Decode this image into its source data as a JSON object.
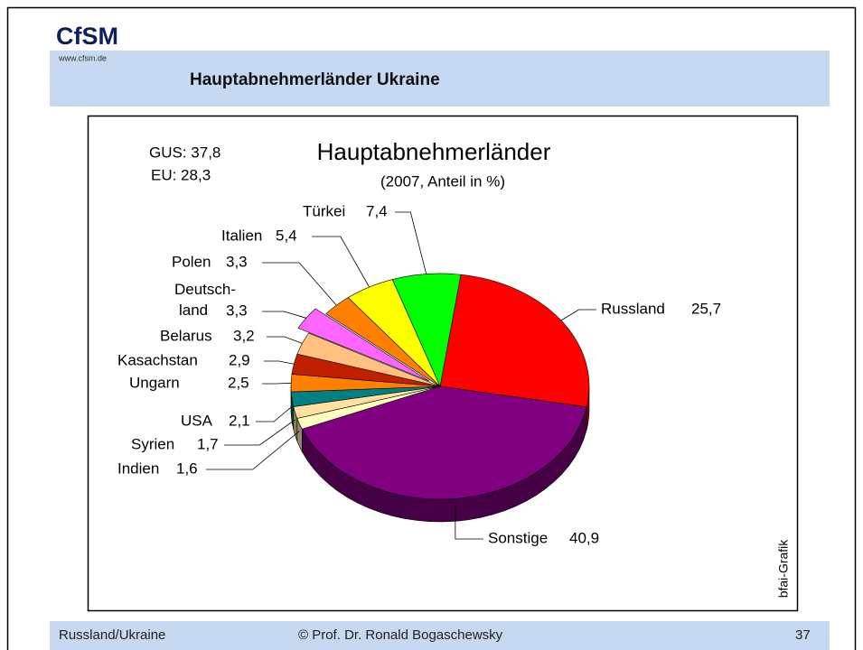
{
  "slide": {
    "logo": "CfSM",
    "website": "www.cfsm.de",
    "title": "Hauptabnehmerländer Ukraine",
    "footer_left": "Russland/Ukraine",
    "footer_center": "© Prof. Dr. Ronald Bogaschewsky",
    "page_number": "37"
  },
  "chart_data": {
    "type": "pie",
    "title": "Hauptabnehmerländer",
    "subtitle": "(2007, Anteil in %)",
    "annotations": [
      "GUS: 37,8",
      "EU: 28,3",
      "bfai-Grafik"
    ],
    "categories": [
      "Russland",
      "Sonstige",
      "Indien",
      "Syrien",
      "USA",
      "Ungarn",
      "Kasachstan",
      "Belarus",
      "Deutsch-land",
      "Polen",
      "Italien",
      "Türkei"
    ],
    "values": [
      25.7,
      40.9,
      1.6,
      1.7,
      2.1,
      2.5,
      2.9,
      3.2,
      3.3,
      3.3,
      5.4,
      7.4
    ],
    "value_labels": [
      "25,7",
      "40,9",
      "1,6",
      "1,7",
      "2,1",
      "2,5",
      "2,9",
      "3,2",
      "3,3",
      "3,3",
      "5,4",
      "7,4"
    ],
    "colors": [
      "#ff0000",
      "#800080",
      "#ffffc0",
      "#ffe0a0",
      "#008080",
      "#ff8000",
      "#c02000",
      "#ffc080",
      "#ff66ff",
      "#ff8000",
      "#ffff00",
      "#00ff00"
    ],
    "exploded": [
      8
    ]
  }
}
